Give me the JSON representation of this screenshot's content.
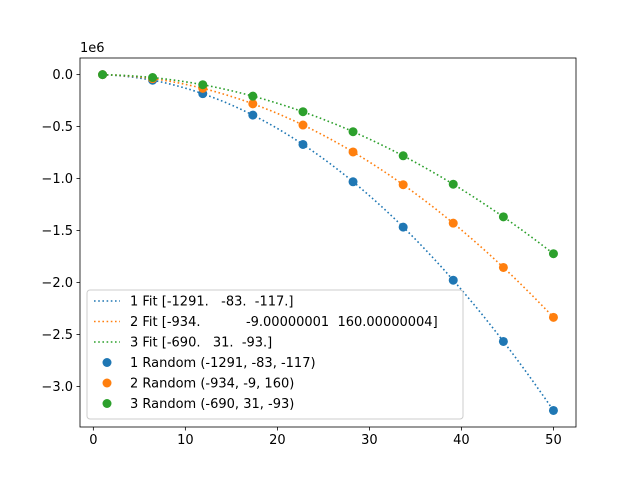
{
  "chart_data": {
    "type": "scatter",
    "axis_offset_label": "1e6",
    "xlim": [
      -1.45,
      52.45
    ],
    "ylim": [
      -3.39,
      0.16
    ],
    "x_ticks": [
      0,
      10,
      20,
      30,
      40,
      50
    ],
    "x_tick_labels": [
      "0",
      "10",
      "20",
      "30",
      "40",
      "50"
    ],
    "y_ticks": [
      0.0,
      -0.5,
      -1.0,
      -1.5,
      -2.0,
      -2.5,
      -3.0
    ],
    "y_tick_labels": [
      "0.0",
      "−0.5",
      "−1.0",
      "−1.5",
      "−2.0",
      "−2.5",
      "−3.0"
    ],
    "grid": false,
    "legend_placement": "lower-left",
    "x": [
      1.0,
      6.44,
      11.89,
      17.33,
      22.78,
      28.22,
      33.67,
      39.11,
      44.56,
      50.0
    ],
    "fits": [
      {
        "label": "1 Fit [-1291.   -83.  -117.]",
        "color": "#1f77b4",
        "coefficients": [
          -1291,
          -83,
          -117
        ]
      },
      {
        "label": "2 Fit [-934.           -9.00000001  160.00000004]",
        "color": "#ff7f0e",
        "coefficients": [
          -934,
          -9,
          160
        ]
      },
      {
        "label": "3 Fit [-690.   31.  -93.]",
        "color": "#2ca02c",
        "coefficients": [
          -690,
          31,
          -93
        ]
      }
    ],
    "series": [
      {
        "label": "1 Random (-1291, -83, -117)",
        "color": "#1f77b4",
        "y": [
          0.0,
          -0.054,
          -0.183,
          -0.389,
          -0.672,
          -1.031,
          -1.467,
          -1.978,
          -2.567,
          -3.231
        ]
      },
      {
        "label": "2 Random (-934, -9, 160)",
        "color": "#ff7f0e",
        "y": [
          0.0,
          -0.039,
          -0.132,
          -0.281,
          -0.485,
          -0.744,
          -1.059,
          -1.429,
          -1.855,
          -2.335
        ]
      },
      {
        "label": "3 Random (-690, 31, -93)",
        "color": "#2ca02c",
        "y": [
          0.0,
          -0.028,
          -0.097,
          -0.207,
          -0.357,
          -0.549,
          -0.781,
          -1.054,
          -1.368,
          -1.723
        ]
      }
    ]
  }
}
